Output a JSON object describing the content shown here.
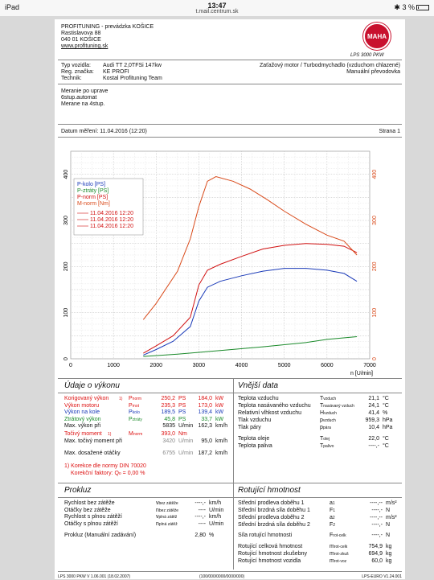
{
  "status": {
    "device": "iPad",
    "time": "13:47",
    "url": "t.mail.centrum.sk",
    "battery": "3 %"
  },
  "company": {
    "name": "PROFITUNING - prevádzka KOŠICE",
    "street": "Rastislavova 88",
    "city": "040 01 KOŠICE",
    "web": "www.profituning.sk",
    "logo_text": "MAHA",
    "product": "LPS 3000 PKW"
  },
  "vehicle": {
    "type_label": "Typ vozidla:",
    "type": "Audi TT 2,0TFSi 147kw",
    "reg_label": "Reg. značka:",
    "reg": "KE PROFI",
    "tech_label": "Technik:",
    "tech": "Kostal Profituning Team",
    "load": "Zaťažový motor / Turbodmychadlo (vzduchom chlazené)",
    "gearbox": "Manuální převodovka"
  },
  "notes": [
    "Meranie po uprave",
    "6stup.automat",
    "Merane na 4stup."
  ],
  "date_line": "Datum měření: 11.04.2016 (12:20)",
  "page_line": "Strana 1",
  "chart_data": {
    "type": "line",
    "x_ticks": [
      "0",
      "1000",
      "2000",
      "3000",
      "4000",
      "5000",
      "6000",
      "7000"
    ],
    "y_left_ticks": [
      "0",
      "100",
      "200",
      "300",
      "400"
    ],
    "y_right_ticks": [
      "0",
      "100",
      "200",
      "300",
      "400"
    ],
    "xlabel": "n [U/min]",
    "xlim": [
      0,
      7000
    ],
    "ylim": [
      0,
      450
    ],
    "legend": {
      "placement": "top-left",
      "entries": [
        {
          "name": "P-kolo [PS]",
          "color": "#1a3ab8"
        },
        {
          "name": "P-ztráty [PS]",
          "color": "#1a8a2a"
        },
        {
          "name": "P-norm [PS]",
          "color": "#d11111"
        },
        {
          "name": "M-norm [Nm]",
          "color": "#d94a1a"
        }
      ],
      "dates": [
        "11.04.2016 12:20",
        "11.04.2016 12:20",
        "11.04.2016 12:20"
      ]
    },
    "series": [
      {
        "name": "P-kolo [PS]",
        "color": "#1a3ab8",
        "x": [
          1700,
          2000,
          2400,
          2800,
          3000,
          3200,
          3500,
          4000,
          4500,
          5000,
          5500,
          6000,
          6400,
          6700
        ],
        "y": [
          8,
          20,
          38,
          70,
          125,
          155,
          168,
          180,
          190,
          196,
          196,
          192,
          185,
          168
        ]
      },
      {
        "name": "P-ztráty [PS]",
        "color": "#1a8a2a",
        "x": [
          1700,
          2500,
          3500,
          4500,
          5500,
          6000,
          6700
        ],
        "y": [
          5,
          10,
          18,
          26,
          35,
          42,
          48
        ]
      },
      {
        "name": "P-norm [PS]",
        "color": "#d11111",
        "x": [
          1700,
          2000,
          2400,
          2800,
          3000,
          3200,
          3500,
          4000,
          4500,
          5000,
          5500,
          6000,
          6400,
          6700
        ],
        "y": [
          12,
          28,
          50,
          90,
          160,
          192,
          205,
          222,
          238,
          246,
          250,
          248,
          244,
          230
        ]
      },
      {
        "name": "M-norm [Nm]",
        "color": "#d94a1a",
        "x": [
          1700,
          2000,
          2500,
          2800,
          3000,
          3200,
          3400,
          3800,
          4200,
          4600,
          5000,
          5500,
          6000,
          6400,
          6700
        ],
        "y": [
          85,
          120,
          190,
          260,
          330,
          385,
          395,
          385,
          368,
          345,
          320,
          292,
          268,
          255,
          225
        ]
      }
    ]
  },
  "power": {
    "title": "Údaje o výkonu",
    "rows": [
      {
        "label": "Korigovaný výkon",
        "mark": "1)",
        "sym": "P",
        "sub": "norm",
        "v1": "250,2",
        "u1": "PS",
        "v2": "184,0",
        "u2": "kW",
        "cls": "red"
      },
      {
        "label": "Výkon motoru",
        "mark": "",
        "sym": "P",
        "sub": "mot",
        "v1": "235,3",
        "u1": "PS",
        "v2": "173,0",
        "u2": "kW",
        "cls": "red"
      },
      {
        "label": "Výkon na kole",
        "mark": "",
        "sym": "P",
        "sub": "kolo",
        "v1": "189,5",
        "u1": "PS",
        "v2": "139,4",
        "u2": "kW",
        "cls": "blue"
      },
      {
        "label": "Ztrátový výkon",
        "mark": "",
        "sym": "P",
        "sub": "ztráty",
        "v1": "45,8",
        "u1": "PS",
        "v2": "33,7",
        "u2": "kW",
        "cls": "green"
      },
      {
        "label": "Max. výkon při",
        "mark": "",
        "sym": "",
        "sub": "",
        "v1": "5835",
        "u1": "U/min",
        "v2": "162,3",
        "u2": "km/h",
        "cls": ""
      }
    ],
    "torque": {
      "label": "Točivý moment",
      "mark": "1)",
      "sym": "M",
      "sub": "norm",
      "v1": "393,0",
      "u1": "Nm"
    },
    "torque_at": {
      "label": "Max. točivý moment při",
      "v1": "3420",
      "u1": "U/min",
      "v2": "95,0",
      "u2": "km/h"
    },
    "max_speed": {
      "label": "Max. dosažené otáčky",
      "v1": "6755",
      "u1": "U/min",
      "v2": "187,2",
      "u2": "km/h"
    },
    "norm_note": "1) Korekce dle normy DIN 70020",
    "factor": "Korekční faktory: Q",
    "factor_sub": "o",
    "factor_val": "= 0,00 %"
  },
  "external": {
    "title": "Vnější data",
    "rows": [
      {
        "label": "Teplota vzduchu",
        "sym": "T",
        "sub": "vzduch",
        "v": "21,1",
        "u": "°C"
      },
      {
        "label": "Teplota nasávaného vzduchu",
        "sym": "T",
        "sub": "nasávaný vzduch",
        "v": "24,1",
        "u": "°C"
      },
      {
        "label": "Relativní vlhkost vzduchu",
        "sym": "H",
        "sub": "vzduch",
        "v": "41,4",
        "u": "%"
      },
      {
        "label": "Tlak vzduchu",
        "sym": "p",
        "sub": "vzduch",
        "v": "959,3",
        "u": "hPa"
      },
      {
        "label": "Tlak páry",
        "sym": "p",
        "sub": "pára",
        "v": "10,4",
        "u": "hPa"
      },
      {
        "label": "Teplota oleje",
        "sym": "T",
        "sub": "olej",
        "v": "22,0",
        "u": "°C"
      },
      {
        "label": "Teplota paliva",
        "sym": "T",
        "sub": "palivo",
        "v": "----,-",
        "u": "°C"
      }
    ]
  },
  "slip": {
    "title": "Prokluz",
    "rows": [
      {
        "label": "Rychlost bez zátěže",
        "sym": "v",
        "sub": "bez zátěže",
        "v": "----,-",
        "u": "km/h"
      },
      {
        "label": "Otáčky bez zátěže",
        "sym": "n",
        "sub": "bez zátěže",
        "v": "----",
        "u": "U/min"
      },
      {
        "label": "Rychlost s plnou zátěží",
        "sym": "v",
        "sub": "plná zátěž",
        "v": "----,-",
        "u": "km/h"
      },
      {
        "label": "Otáčky s plnou zátěží",
        "sym": "n",
        "sub": "plná zátěž",
        "v": "----",
        "u": "U/min"
      }
    ],
    "manual": {
      "label": "Prokluz (Manuální zadávání)",
      "v": "2,80",
      "u": "%"
    }
  },
  "inertia": {
    "title": "Rotující hmotnost",
    "rows": [
      {
        "label": "Střední prodleva doběhu 1",
        "sym": "a",
        "sub": "1",
        "v": "----,--",
        "u": "m/s²"
      },
      {
        "label": "Střední brzdná síla doběhu 1",
        "sym": "F",
        "sub": "1",
        "v": "----,-",
        "u": "N"
      },
      {
        "label": "Střední prodleva doběhu 2",
        "sym": "a",
        "sub": "2",
        "v": "----,--",
        "u": "m/s²"
      },
      {
        "label": "Střední brzdná síla doběhu 2",
        "sym": "F",
        "sub": "2",
        "v": "----,-",
        "u": "N"
      },
      {
        "label": "Síla rotující hmotnosti",
        "sym": "F",
        "sub": "rot-celk",
        "v": "----,-",
        "u": "N"
      },
      {
        "label": "Rotující celková hmotnost",
        "sym": "m",
        "sub": "rot-celk",
        "v": "754,9",
        "u": "kg"
      },
      {
        "label": "Rotující hmotnost zkušebny",
        "sym": "m",
        "sub": "rot-zkuš",
        "v": "694,9",
        "u": "kg"
      },
      {
        "label": "Rotující hmotnost vozidla",
        "sym": "m",
        "sub": "rot-voz",
        "v": "60,0",
        "u": "kg"
      }
    ]
  },
  "footer": {
    "left": "LPS 3000 PKW V 1.06.001 (18.02.2007)",
    "mid": "(100/000/0000/0000/000)",
    "right": "LPS-EURO V1.24.001"
  }
}
